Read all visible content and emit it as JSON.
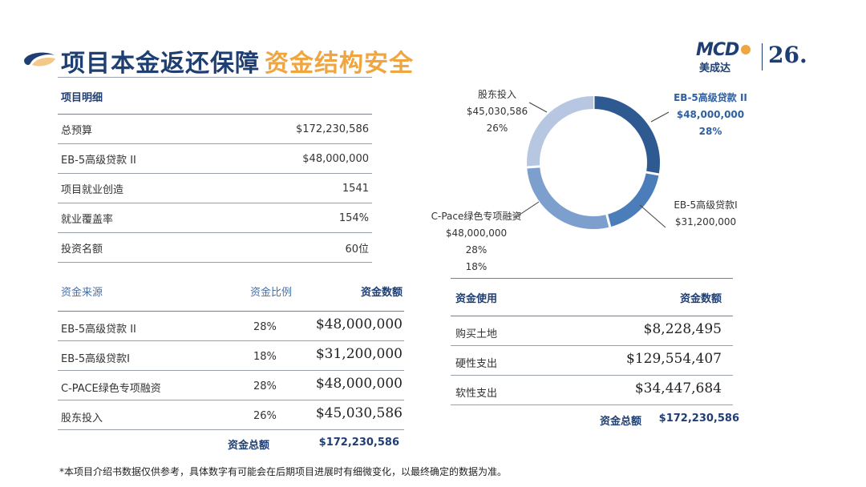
{
  "header": {
    "title_main": "项目本金返还保障",
    "title_accent": "资金结构安全",
    "logo_brand": "MCD",
    "logo_sub": "美成达",
    "logo_number": "26."
  },
  "colors": {
    "navy": "#1f3e72",
    "accent": "#f0a640",
    "slice_dark": "#2f5a91",
    "slice_mid": "#4b7dbb",
    "slice_light": "#7c9fce",
    "slice_pale": "#b7c7e1"
  },
  "detail": {
    "heading": "项目明细",
    "rows": [
      {
        "label": "总预算",
        "value": "$172,230,586"
      },
      {
        "label": "EB-5高级贷款 II",
        "value": "$48,000,000"
      },
      {
        "label": "项目就业创造",
        "value": "1541"
      },
      {
        "label": "就业覆盖率",
        "value": "154%"
      },
      {
        "label": "投资名额",
        "value": "60位"
      }
    ]
  },
  "sources": {
    "col_source": "资金来源",
    "col_ratio": "资金比例",
    "col_amount": "资金数额",
    "rows": [
      {
        "name": "EB-5高级贷款 II",
        "ratio": "28%",
        "amount": "$48,000,000"
      },
      {
        "name": "EB-5高级贷款I",
        "ratio": "18%",
        "amount": "$31,200,000"
      },
      {
        "name": "C-PACE绿色专项融资",
        "ratio": "28%",
        "amount": "$48,000,000"
      },
      {
        "name": "股东投入",
        "ratio": "26%",
        "amount": "$45,030,586"
      }
    ],
    "total_label": "资金总额",
    "total_value": "$172,230,586"
  },
  "uses": {
    "col_use": "资金使用",
    "col_amount": "资金数额",
    "rows": [
      {
        "name": "购买土地",
        "amount": "$8,228,495"
      },
      {
        "name": "硬性支出",
        "amount": "$129,554,407"
      },
      {
        "name": "软性支出",
        "amount": "$34,447,684"
      }
    ],
    "total_label": "资金总额",
    "total_value": "$172,230,586"
  },
  "chart_data": {
    "type": "pie",
    "donut": true,
    "slices": [
      {
        "name": "EB-5高级贷款 II",
        "value": 48000000,
        "value_label": "$48,000,000",
        "percent_label": "28%",
        "percent": 28,
        "color": "#2f5a91"
      },
      {
        "name": "EB-5高级贷款I",
        "value": 31200000,
        "value_label": "$31,200,000",
        "percent_label": "18%",
        "percent": 18,
        "color": "#4b7dbb"
      },
      {
        "name": "C-Pace绿色专项融资",
        "value": 48000000,
        "value_label": "$48,000,000",
        "percent_label": "28%",
        "percent": 28,
        "color": "#7c9fce"
      },
      {
        "name": "股东投入",
        "value": 45030586,
        "value_label": "$45,030,586",
        "percent_label": "26%",
        "percent": 26,
        "color": "#b7c7e1"
      }
    ],
    "stray_label": "18%"
  },
  "footnote": "*本项目介绍书数据仅供参考，具体数字有可能会在后期项目进展时有细微变化，以最终确定的数据为准。"
}
